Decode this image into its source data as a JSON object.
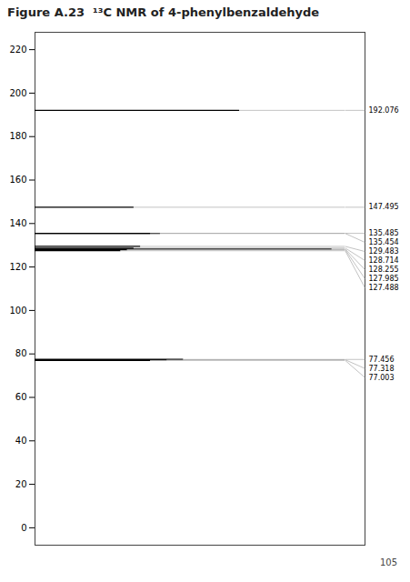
{
  "chart_data": {
    "type": "bar",
    "orientation": "horizontal",
    "title": "Figure A.23  ¹³C NMR of 4-phenylbenzaldehyde",
    "y": [
      192.076,
      147.495,
      135.454,
      135.485,
      129.483,
      128.255,
      128.714,
      127.985,
      127.488,
      77.456,
      77.318,
      77.003
    ],
    "values": [
      0.62,
      0.3,
      0.38,
      0.35,
      0.32,
      0.9,
      0.3,
      0.28,
      0.26,
      0.45,
      0.4,
      0.35
    ],
    "labels": [
      "192.076",
      "147.495",
      "135.454",
      "135.485",
      "129.483",
      "128.255",
      "128.714",
      "127.985",
      "127.488",
      "77.456",
      "77.318",
      "77.003"
    ],
    "data_labels": true,
    "xlim": [
      0,
      1
    ],
    "ylim": [
      -8,
      228
    ],
    "yticks": [
      0,
      20,
      40,
      60,
      80,
      100,
      120,
      140,
      160,
      180,
      200,
      220
    ],
    "tick_labels": "y",
    "grid": false,
    "annotations": [
      "105"
    ]
  }
}
